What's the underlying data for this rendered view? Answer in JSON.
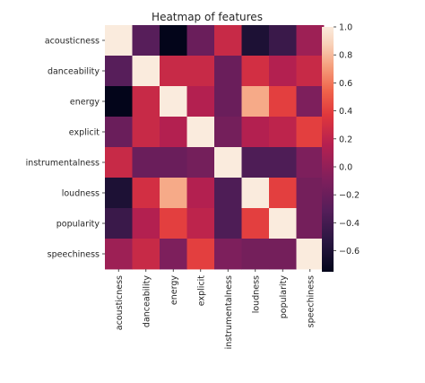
{
  "chart_data": {
    "type": "heatmap",
    "title": "Heatmap of features",
    "labels": [
      "acousticness",
      "danceability",
      "energy",
      "explicit",
      "instrumentalness",
      "loudness",
      "popularity",
      "speechiness"
    ],
    "matrix": [
      [
        1.0,
        -0.3,
        -0.75,
        -0.2,
        0.25,
        -0.6,
        -0.45,
        0.05
      ],
      [
        -0.3,
        1.0,
        0.25,
        0.25,
        -0.2,
        0.3,
        0.15,
        0.25
      ],
      [
        -0.75,
        0.25,
        1.0,
        0.15,
        -0.2,
        0.75,
        0.4,
        -0.1
      ],
      [
        -0.2,
        0.25,
        0.15,
        1.0,
        -0.15,
        0.15,
        0.2,
        0.4
      ],
      [
        0.25,
        -0.2,
        -0.2,
        -0.15,
        1.0,
        -0.35,
        -0.35,
        -0.1
      ],
      [
        -0.6,
        0.3,
        0.75,
        0.15,
        -0.35,
        1.0,
        0.4,
        -0.15
      ],
      [
        -0.45,
        0.15,
        0.4,
        0.2,
        -0.35,
        0.4,
        1.0,
        -0.15
      ],
      [
        0.05,
        0.25,
        -0.1,
        0.4,
        -0.1,
        -0.15,
        -0.15,
        1.0
      ]
    ],
    "colorbar": {
      "range": [
        -0.75,
        1.0
      ],
      "ticks": [
        "1.0",
        "0.8",
        "0.6",
        "0.4",
        "0.2",
        "0.0",
        "−0.2",
        "−0.4",
        "−0.6"
      ],
      "tick_values": [
        1.0,
        0.8,
        0.6,
        0.4,
        0.2,
        0.0,
        -0.2,
        -0.4,
        -0.6
      ],
      "colormap": "rocket"
    }
  }
}
